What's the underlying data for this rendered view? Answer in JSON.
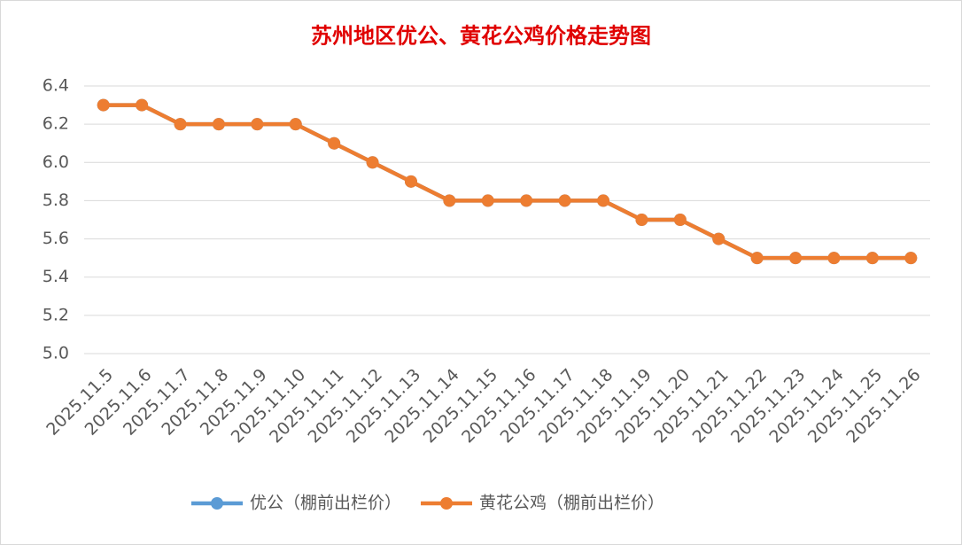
{
  "chart_data": {
    "type": "line",
    "title": "苏州地区优公、黄花公鸡价格走势图",
    "categories": [
      "2025.11.5",
      "2025.11.6",
      "2025.11.7",
      "2025.11.8",
      "2025.11.9",
      "2025.11.10",
      "2025.11.11",
      "2025.11.12",
      "2025.11.13",
      "2025.11.14",
      "2025.11.15",
      "2025.11.16",
      "2025.11.17",
      "2025.11.18",
      "2025.11.19",
      "2025.11.20",
      "2025.11.21",
      "2025.11.22",
      "2025.11.23",
      "2025.11.24",
      "2025.11.25",
      "2025.11.26"
    ],
    "series": [
      {
        "name": "优公（棚前出栏价）",
        "color": "#5b9bd5",
        "values": [
          6.3,
          6.3,
          6.2,
          6.2,
          6.2,
          6.2,
          6.1,
          6.0,
          5.9,
          5.8,
          5.8,
          5.8,
          5.8,
          5.8,
          5.7,
          5.7,
          5.6,
          5.5,
          5.5,
          5.5,
          5.5,
          5.5
        ]
      },
      {
        "name": "黄花公鸡（棚前出栏价）",
        "color": "#ed7d31",
        "values": [
          6.3,
          6.3,
          6.2,
          6.2,
          6.2,
          6.2,
          6.1,
          6.0,
          5.9,
          5.8,
          5.8,
          5.8,
          5.8,
          5.8,
          5.7,
          5.7,
          5.6,
          5.5,
          5.5,
          5.5,
          5.5,
          5.5
        ]
      }
    ],
    "ylim": [
      5.0,
      6.4
    ],
    "yticks": [
      {
        "value": 5.0,
        "label": "5.0"
      },
      5.2,
      5.4,
      5.6,
      5.8,
      {
        "value": 6.0,
        "label": "6.0"
      },
      6.2,
      6.4
    ],
    "grid": true,
    "legend": "bottom"
  }
}
